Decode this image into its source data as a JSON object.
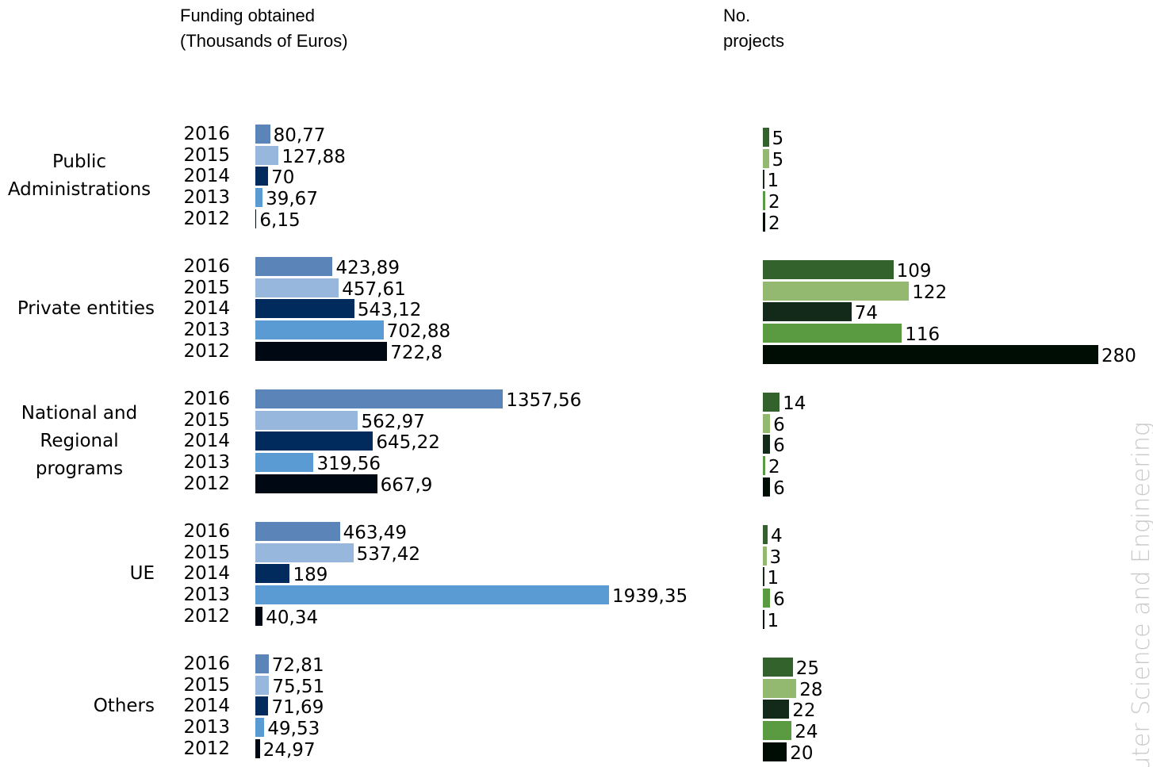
{
  "side_text": "uter Science and Engineering",
  "chart_data": [
    {
      "type": "bar",
      "orientation": "horizontal",
      "title": "Funding obtained\n(Thousands of Euros)",
      "categories": [
        "Public Administrations",
        "Private entities",
        "National and Regional programs",
        "UE",
        "Others"
      ],
      "series": [
        {
          "name": "2016",
          "color": "#5b84b8",
          "values": [
            80.77,
            423.89,
            1357.56,
            463.49,
            72.81
          ],
          "value_labels": [
            "80,77",
            "423,89",
            "1357,56",
            "463,49",
            "72,81"
          ]
        },
        {
          "name": "2015",
          "color": "#97b8dc",
          "values": [
            127.88,
            457.61,
            562.97,
            537.42,
            75.51
          ],
          "value_labels": [
            "127,88",
            "457,61",
            "562,97",
            "537,42",
            "75,51"
          ]
        },
        {
          "name": "2014",
          "color": "#002b5c",
          "values": [
            70,
            543.12,
            645.22,
            189,
            71.69
          ],
          "value_labels": [
            "70",
            "543,12",
            "645,22",
            "189",
            "71,69"
          ]
        },
        {
          "name": "2013",
          "color": "#5a9bd3",
          "values": [
            39.67,
            702.88,
            319.56,
            1939.35,
            49.53
          ],
          "value_labels": [
            "39,67",
            "702,88",
            "319,56",
            "1939,35",
            "49,53"
          ]
        },
        {
          "name": "2012",
          "color": "#000814",
          "values": [
            6.15,
            722.8,
            667.9,
            40.34,
            24.97
          ],
          "value_labels": [
            "6,15",
            "722,8",
            "667,9",
            "40,34",
            "24,97"
          ]
        }
      ]
    },
    {
      "type": "bar",
      "orientation": "horizontal",
      "title": "No.\nprojects",
      "series": [
        {
          "color": "#33622d",
          "values": [
            5,
            109,
            14,
            4,
            25
          ]
        },
        {
          "color": "#93b86f",
          "values": [
            5,
            122,
            6,
            3,
            28
          ]
        },
        {
          "color": "#13291a",
          "values": [
            1,
            74,
            6,
            1,
            22
          ]
        },
        {
          "color": "#5a9a40",
          "values": [
            2,
            116,
            2,
            6,
            24
          ]
        },
        {
          "color": "#000d05",
          "values": [
            2,
            280,
            6,
            1,
            20
          ]
        }
      ]
    }
  ]
}
